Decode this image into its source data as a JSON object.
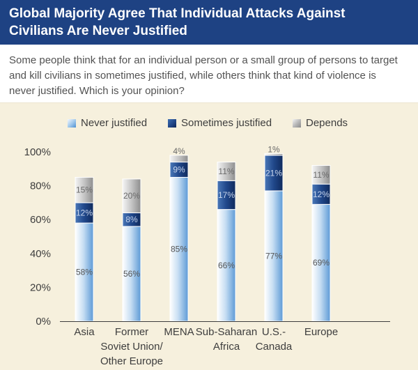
{
  "header": {
    "title_line1": "Global Majority Agree That Individual Attacks Against",
    "title_line2": "Civilians Are Never Justified"
  },
  "question": {
    "line1": "Some people think that for an individual person or a small group of persons to target",
    "line2": "and kill civilians in sometimes justified, while others think that kind of violence is",
    "line3": "never justified. Which is your opinion?"
  },
  "colors": {
    "never": "#7fb2e3",
    "sometimes": "#1e4283",
    "depends": "#a8a8a8",
    "header_bg": "#1e4283",
    "chart_bg": "#f6f0dd"
  },
  "chart_data": {
    "type": "bar",
    "stacked": true,
    "title": "Global Majority Agree That Individual Attacks Against Civilians Are Never Justified",
    "categories": [
      [
        "Asia"
      ],
      [
        "Former",
        "Soviet Union/",
        "Other Europe"
      ],
      [
        "MENA"
      ],
      [
        "Sub-Saharan",
        "Africa"
      ],
      [
        "U.S.-",
        "Canada"
      ],
      [
        "Europe"
      ]
    ],
    "series": [
      {
        "name": "Never justified",
        "key": "never",
        "values": [
          58,
          56,
          85,
          66,
          77,
          69
        ]
      },
      {
        "name": "Sometimes justified",
        "key": "sometimes",
        "values": [
          12,
          8,
          9,
          17,
          21,
          12
        ]
      },
      {
        "name": "Depends",
        "key": "depends",
        "values": [
          15,
          20,
          4,
          11,
          1,
          11
        ]
      }
    ],
    "ylim": [
      0,
      100
    ],
    "yticks": [
      "0%",
      "20%",
      "40%",
      "60%",
      "80%",
      "100%"
    ],
    "ytick_values": [
      0,
      20,
      40,
      60,
      80,
      100
    ],
    "xlabel": "",
    "ylabel": "",
    "legend_position": "top"
  }
}
